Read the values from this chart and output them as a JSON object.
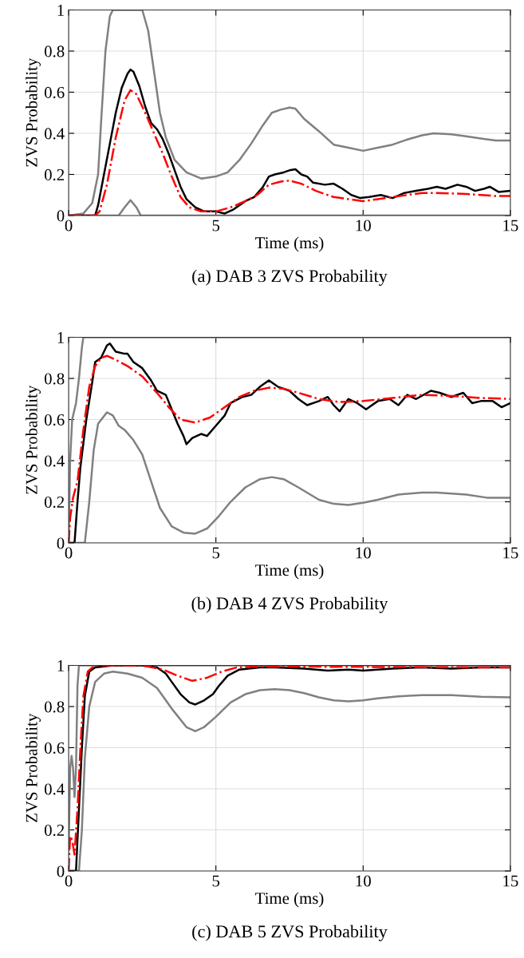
{
  "chart_data": [
    {
      "type": "line",
      "title": "(a) DAB 3 ZVS Probability",
      "xlabel": "Time (ms)",
      "ylabel": "ZVS Probability",
      "xlim": [
        0,
        15
      ],
      "ylim": [
        0,
        1
      ],
      "xticks": [
        0,
        5,
        10,
        15
      ],
      "yticks": [
        0,
        0.2,
        0.4,
        0.6,
        0.8,
        1
      ],
      "grid": true,
      "series": [
        {
          "color": "#808080",
          "line_style": "solid",
          "x": [
            0,
            0.5,
            0.8,
            1.0,
            1.1,
            1.25,
            1.4,
            1.5,
            2.5,
            2.7,
            2.9,
            3.1,
            3.3,
            3.6,
            4.0,
            4.5,
            5.0,
            5.4,
            5.8,
            6.2,
            6.6,
            6.9,
            7.2,
            7.5,
            7.7,
            8.0,
            8.5,
            9.0,
            9.5,
            10.0,
            10.5,
            11.0,
            11.5,
            12.0,
            12.4,
            13.0,
            13.5,
            14.0,
            14.5,
            15
          ],
          "values": [
            0,
            0.01,
            0.06,
            0.2,
            0.45,
            0.8,
            0.97,
            1,
            1,
            0.9,
            0.7,
            0.5,
            0.38,
            0.27,
            0.21,
            0.18,
            0.19,
            0.21,
            0.27,
            0.35,
            0.44,
            0.5,
            0.515,
            0.525,
            0.52,
            0.47,
            0.41,
            0.345,
            0.33,
            0.315,
            0.33,
            0.345,
            0.37,
            0.39,
            0.4,
            0.395,
            0.385,
            0.375,
            0.365,
            0.365
          ]
        },
        {
          "color": "#808080",
          "line_style": "solid",
          "x": [
            0,
            1.7,
            1.9,
            2.1,
            2.3,
            2.45,
            15
          ],
          "values": [
            0,
            0,
            0.04,
            0.075,
            0.04,
            0,
            0
          ]
        },
        {
          "color": "#000000",
          "line_style": "solid",
          "x": [
            0,
            0.9,
            1.0,
            1.2,
            1.4,
            1.6,
            1.8,
            2.0,
            2.1,
            2.2,
            2.4,
            2.6,
            2.8,
            3.0,
            3.2,
            3.4,
            3.6,
            3.8,
            4.0,
            4.3,
            4.6,
            5.0,
            5.3,
            5.6,
            6.0,
            6.3,
            6.6,
            6.8,
            7.0,
            7.3,
            7.5,
            7.7,
            7.9,
            8.1,
            8.3,
            8.7,
            9.0,
            9.3,
            9.6,
            9.9,
            10.2,
            10.6,
            11.0,
            11.4,
            11.8,
            12.2,
            12.5,
            12.8,
            13.2,
            13.5,
            13.8,
            14.1,
            14.3,
            14.6,
            15
          ],
          "values": [
            0,
            0,
            0.05,
            0.2,
            0.35,
            0.5,
            0.62,
            0.69,
            0.71,
            0.7,
            0.63,
            0.53,
            0.45,
            0.42,
            0.37,
            0.3,
            0.22,
            0.14,
            0.08,
            0.04,
            0.02,
            0.02,
            0.01,
            0.03,
            0.07,
            0.09,
            0.14,
            0.19,
            0.2,
            0.21,
            0.22,
            0.225,
            0.2,
            0.19,
            0.16,
            0.15,
            0.155,
            0.13,
            0.1,
            0.085,
            0.09,
            0.1,
            0.085,
            0.11,
            0.12,
            0.13,
            0.14,
            0.13,
            0.15,
            0.14,
            0.12,
            0.13,
            0.14,
            0.115,
            0.12
          ]
        },
        {
          "color": "#ff0000",
          "line_style": "dashdot",
          "x": [
            0,
            0.9,
            1.05,
            1.3,
            1.6,
            1.9,
            2.1,
            2.3,
            2.6,
            2.9,
            3.2,
            3.5,
            3.8,
            4.1,
            4.5,
            5.0,
            5.5,
            6.0,
            6.4,
            6.8,
            7.2,
            7.5,
            7.9,
            8.4,
            9.0,
            9.5,
            10.0,
            10.5,
            11.0,
            12.0,
            12.5,
            13.5,
            14.5,
            15
          ],
          "values": [
            0,
            0,
            0.02,
            0.15,
            0.38,
            0.56,
            0.61,
            0.59,
            0.5,
            0.4,
            0.3,
            0.19,
            0.09,
            0.04,
            0.02,
            0.02,
            0.04,
            0.07,
            0.1,
            0.15,
            0.165,
            0.17,
            0.155,
            0.12,
            0.09,
            0.08,
            0.07,
            0.08,
            0.09,
            0.11,
            0.11,
            0.105,
            0.095,
            0.095
          ]
        }
      ]
    },
    {
      "type": "line",
      "title": "(b) DAB 4 ZVS Probability",
      "xlabel": "Time (ms)",
      "ylabel": "ZVS Probability",
      "xlim": [
        0,
        15
      ],
      "ylim": [
        0,
        1
      ],
      "xticks": [
        0,
        5,
        10,
        15
      ],
      "yticks": [
        0,
        0.2,
        0.4,
        0.6,
        0.8,
        1
      ],
      "grid": true,
      "series": [
        {
          "color": "#808080",
          "line_style": "solid",
          "x": [
            0,
            0.05,
            0.12,
            0.25,
            0.35,
            0.45,
            0.5,
            15
          ],
          "values": [
            0,
            0.4,
            0.6,
            0.68,
            0.8,
            0.95,
            1,
            1
          ]
        },
        {
          "color": "#808080",
          "line_style": "solid",
          "x": [
            0,
            0.55,
            0.7,
            0.85,
            1.0,
            1.3,
            1.5,
            1.7,
            1.9,
            2.2,
            2.5,
            2.8,
            3.1,
            3.5,
            3.9,
            4.3,
            4.7,
            5.1,
            5.5,
            6.0,
            6.5,
            6.9,
            7.3,
            7.8,
            8.5,
            9.0,
            9.5,
            10.0,
            10.5,
            11.2,
            12.0,
            12.5,
            13.5,
            14.2,
            15
          ],
          "values": [
            0,
            0,
            0.2,
            0.45,
            0.58,
            0.635,
            0.62,
            0.57,
            0.55,
            0.5,
            0.43,
            0.3,
            0.17,
            0.08,
            0.05,
            0.045,
            0.07,
            0.13,
            0.2,
            0.27,
            0.31,
            0.32,
            0.31,
            0.27,
            0.21,
            0.19,
            0.185,
            0.195,
            0.21,
            0.235,
            0.245,
            0.245,
            0.235,
            0.22,
            0.22
          ]
        },
        {
          "color": "#000000",
          "line_style": "solid",
          "x": [
            0,
            0.2,
            0.3,
            0.4,
            0.6,
            0.8,
            0.9,
            1.1,
            1.3,
            1.4,
            1.6,
            1.9,
            2.0,
            2.2,
            2.5,
            2.8,
            3.0,
            3.3,
            3.5,
            3.7,
            3.9,
            4.0,
            4.2,
            4.5,
            4.7,
            5.0,
            5.3,
            5.5,
            5.9,
            6.2,
            6.5,
            6.8,
            7.1,
            7.5,
            7.8,
            8.1,
            8.5,
            8.8,
            9.0,
            9.2,
            9.5,
            9.8,
            10.1,
            10.5,
            10.9,
            11.2,
            11.5,
            11.8,
            12.3,
            12.6,
            13.0,
            13.4,
            13.7,
            14.0,
            14.4,
            14.7,
            15
          ],
          "values": [
            0,
            0,
            0.2,
            0.37,
            0.6,
            0.78,
            0.88,
            0.9,
            0.96,
            0.97,
            0.93,
            0.92,
            0.92,
            0.88,
            0.85,
            0.79,
            0.74,
            0.72,
            0.65,
            0.58,
            0.52,
            0.48,
            0.51,
            0.53,
            0.52,
            0.57,
            0.62,
            0.68,
            0.71,
            0.72,
            0.76,
            0.79,
            0.76,
            0.74,
            0.7,
            0.67,
            0.69,
            0.71,
            0.67,
            0.64,
            0.7,
            0.68,
            0.65,
            0.69,
            0.7,
            0.67,
            0.72,
            0.7,
            0.74,
            0.73,
            0.71,
            0.73,
            0.68,
            0.69,
            0.69,
            0.66,
            0.68
          ]
        },
        {
          "color": "#ff0000",
          "line_style": "dashdot",
          "x": [
            0,
            0.05,
            0.15,
            0.3,
            0.5,
            0.7,
            0.9,
            1.1,
            1.3,
            1.6,
            2.0,
            2.5,
            3.0,
            3.4,
            3.8,
            4.3,
            4.8,
            5.3,
            5.8,
            6.3,
            6.8,
            7.3,
            7.8,
            8.5,
            9.2,
            10.0,
            11.0,
            12.0,
            13.0,
            14.0,
            15
          ],
          "values": [
            0,
            0.12,
            0.22,
            0.3,
            0.55,
            0.76,
            0.86,
            0.9,
            0.91,
            0.89,
            0.86,
            0.81,
            0.73,
            0.66,
            0.6,
            0.585,
            0.61,
            0.66,
            0.71,
            0.74,
            0.755,
            0.75,
            0.73,
            0.7,
            0.685,
            0.69,
            0.705,
            0.72,
            0.715,
            0.705,
            0.7
          ]
        }
      ]
    },
    {
      "type": "line",
      "title": "(c) DAB 5 ZVS Probability",
      "xlabel": "Time (ms)",
      "ylabel": "ZVS Probability",
      "xlim": [
        0,
        15
      ],
      "ylim": [
        0,
        1
      ],
      "xticks": [
        0,
        5,
        10,
        15
      ],
      "yticks": [
        0,
        0.2,
        0.4,
        0.6,
        0.8,
        1
      ],
      "grid": true,
      "series": [
        {
          "color": "#808080",
          "line_style": "solid",
          "x": [
            0,
            0.05,
            0.1,
            0.15,
            0.2,
            0.25,
            0.3,
            0.35,
            15
          ],
          "values": [
            0.1,
            0.5,
            0.56,
            0.5,
            0.36,
            0.5,
            0.9,
            1,
            1
          ]
        },
        {
          "color": "#808080",
          "line_style": "solid",
          "x": [
            0,
            0.35,
            0.45,
            0.55,
            0.7,
            0.9,
            1.2,
            1.5,
            2.0,
            2.5,
            3.0,
            3.5,
            4.0,
            4.3,
            4.6,
            5.0,
            5.5,
            6.0,
            6.5,
            7.0,
            7.5,
            8.0,
            8.5,
            9.0,
            9.5,
            10.0,
            10.5,
            11.2,
            12.0,
            13.0,
            14.0,
            15
          ],
          "values": [
            0,
            0,
            0.2,
            0.55,
            0.8,
            0.92,
            0.96,
            0.97,
            0.96,
            0.94,
            0.89,
            0.79,
            0.7,
            0.68,
            0.7,
            0.75,
            0.82,
            0.86,
            0.88,
            0.885,
            0.88,
            0.865,
            0.845,
            0.83,
            0.825,
            0.83,
            0.84,
            0.85,
            0.855,
            0.855,
            0.848,
            0.845
          ]
        },
        {
          "color": "#000000",
          "line_style": "solid",
          "x": [
            0,
            0.25,
            0.35,
            0.45,
            0.55,
            0.7,
            0.9,
            1.5,
            2.5,
            3.0,
            3.3,
            3.5,
            3.8,
            4.1,
            4.3,
            4.6,
            4.9,
            5.1,
            5.4,
            5.8,
            6.5,
            7.0,
            8.0,
            8.8,
            9.5,
            10.0,
            11.0,
            12.0,
            13.0,
            14.0,
            15
          ],
          "values": [
            0,
            0,
            0.3,
            0.6,
            0.85,
            0.97,
            0.99,
            1,
            1,
            0.99,
            0.96,
            0.92,
            0.86,
            0.82,
            0.81,
            0.83,
            0.86,
            0.9,
            0.95,
            0.98,
            0.99,
            0.99,
            0.985,
            0.975,
            0.98,
            0.975,
            0.985,
            0.99,
            0.985,
            0.99,
            0.99
          ]
        },
        {
          "color": "#ff0000",
          "line_style": "dashdot",
          "x": [
            0,
            0.05,
            0.12,
            0.2,
            0.3,
            0.4,
            0.5,
            0.65,
            0.8,
            1.0,
            2.5,
            3.2,
            3.7,
            4.2,
            4.7,
            5.2,
            5.7,
            6.5,
            15
          ],
          "values": [
            0,
            0.17,
            0.15,
            0.08,
            0.3,
            0.6,
            0.85,
            0.97,
            0.99,
            1,
            1,
            0.98,
            0.95,
            0.925,
            0.94,
            0.97,
            0.99,
            0.995,
            0.99
          ]
        }
      ]
    }
  ]
}
